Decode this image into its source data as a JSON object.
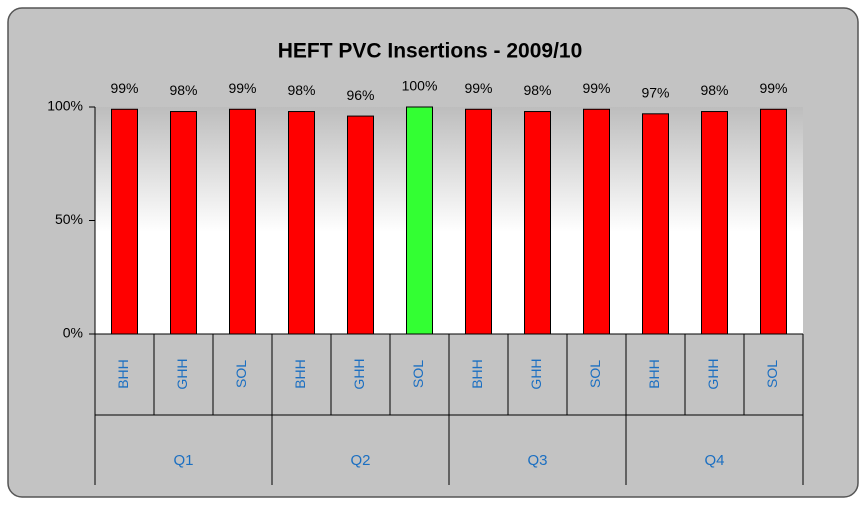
{
  "chart_data": {
    "type": "bar",
    "title": "HEFT PVC Insertions - 2009/10",
    "categories": [
      "BHH",
      "GHH",
      "SOL",
      "BHH",
      "GHH",
      "SOL",
      "BHH",
      "GHH",
      "SOL",
      "BHH",
      "GHH",
      "SOL"
    ],
    "groups": [
      "Q1",
      "Q2",
      "Q3",
      "Q4"
    ],
    "values": [
      99,
      98,
      99,
      98,
      96,
      100,
      99,
      98,
      99,
      97,
      98,
      99
    ],
    "value_labels": [
      "99%",
      "98%",
      "99%",
      "98%",
      "96%",
      "100%",
      "99%",
      "98%",
      "99%",
      "97%",
      "98%",
      "99%"
    ],
    "colors": [
      "#ff0000",
      "#ff0000",
      "#ff0000",
      "#ff0000",
      "#ff0000",
      "#33ff33",
      "#ff0000",
      "#ff0000",
      "#ff0000",
      "#ff0000",
      "#ff0000",
      "#ff0000"
    ],
    "ylim": [
      0,
      100
    ],
    "yticks": [
      {
        "value": 0,
        "label": "0%"
      },
      {
        "value": 50,
        "label": "50%"
      },
      {
        "value": 100,
        "label": "100%"
      }
    ]
  }
}
